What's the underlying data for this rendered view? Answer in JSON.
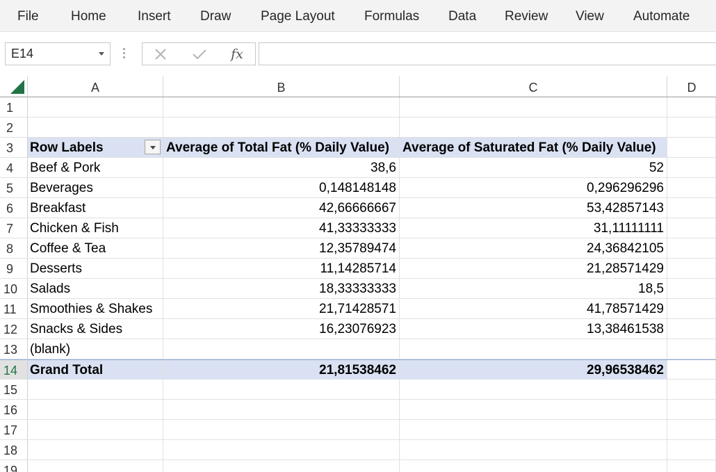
{
  "ribbon": {
    "tabs": [
      "File",
      "Home",
      "Insert",
      "Draw",
      "Page Layout",
      "Formulas",
      "Data",
      "Review",
      "View",
      "Automate"
    ]
  },
  "formula_bar": {
    "name_box": "E14",
    "fx_label": "fx",
    "formula": ""
  },
  "columns": [
    "A",
    "B",
    "C",
    "D"
  ],
  "rows": [
    {
      "num": "1",
      "a": "",
      "b": "",
      "c": ""
    },
    {
      "num": "2",
      "a": "",
      "b": "",
      "c": ""
    },
    {
      "num": "3",
      "a": "Row Labels",
      "b": "Average of Total Fat (% Daily Value)",
      "c": "Average of Saturated Fat (% Daily Value)"
    },
    {
      "num": "4",
      "a": "Beef & Pork",
      "b": "38,6",
      "c": "52"
    },
    {
      "num": "5",
      "a": "Beverages",
      "b": "0,148148148",
      "c": "0,296296296"
    },
    {
      "num": "6",
      "a": "Breakfast",
      "b": "42,66666667",
      "c": "53,42857143"
    },
    {
      "num": "7",
      "a": "Chicken & Fish",
      "b": "41,33333333",
      "c": "31,11111111"
    },
    {
      "num": "8",
      "a": "Coffee & Tea",
      "b": "12,35789474",
      "c": "24,36842105"
    },
    {
      "num": "9",
      "a": "Desserts",
      "b": "11,14285714",
      "c": "21,28571429"
    },
    {
      "num": "10",
      "a": "Salads",
      "b": "18,33333333",
      "c": "18,5"
    },
    {
      "num": "11",
      "a": "Smoothies & Shakes",
      "b": "21,71428571",
      "c": "41,78571429"
    },
    {
      "num": "12",
      "a": "Snacks & Sides",
      "b": "16,23076923",
      "c": "13,38461538"
    },
    {
      "num": "13",
      "a": "(blank)",
      "b": "",
      "c": ""
    },
    {
      "num": "14",
      "a": "Grand Total",
      "b": "21,81538462",
      "c": "29,96538462"
    },
    {
      "num": "15",
      "a": "",
      "b": "",
      "c": ""
    },
    {
      "num": "16",
      "a": "",
      "b": "",
      "c": ""
    },
    {
      "num": "17",
      "a": "",
      "b": "",
      "c": ""
    },
    {
      "num": "18",
      "a": "",
      "b": "",
      "c": ""
    },
    {
      "num": "19",
      "a": "",
      "b": "",
      "c": ""
    }
  ],
  "colors": {
    "accent": "#217346",
    "pivot_header_fill": "#d9e1f2"
  }
}
